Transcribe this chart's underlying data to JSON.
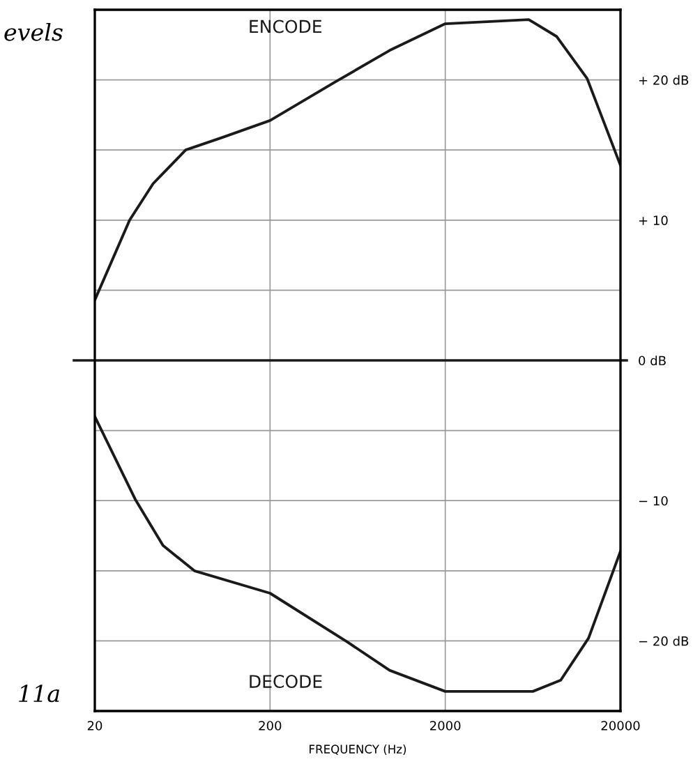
{
  "chart_data": {
    "type": "line",
    "xlabel": "FREQUENCY (Hz)",
    "series": [
      {
        "name": "ENCODE",
        "color": "#1a1a1a",
        "x": [
          20,
          31.6,
          43,
          66,
          107,
          200,
          463,
          963,
          2000,
          5985,
          8630,
          12900,
          20000
        ],
        "values": [
          4.3,
          10.0,
          12.6,
          15.0,
          15.9,
          17.1,
          19.8,
          22.1,
          24.0,
          24.3,
          23.1,
          20.1,
          13.9
        ]
      },
      {
        "name": "DECODE",
        "color": "#1a1a1a",
        "x": [
          20,
          34,
          49,
          74,
          200,
          556,
          963,
          2000,
          6320,
          9120,
          13150,
          20000
        ],
        "values": [
          -4.0,
          -9.9,
          -13.2,
          -15.0,
          -16.6,
          -20.1,
          -22.1,
          -23.6,
          -23.6,
          -22.8,
          -19.8,
          -13.6
        ]
      }
    ],
    "log": "x",
    "xlim": [
      20,
      20000
    ],
    "xticks": [
      20,
      200,
      2000,
      20000
    ],
    "ylim": [
      -25,
      25
    ],
    "yticks": [
      {
        "value": -25,
        "label": null
      },
      {
        "value": -20,
        "label": "− 20 dB"
      },
      {
        "value": -15,
        "label": null
      },
      {
        "value": -10,
        "label": "− 10"
      },
      {
        "value": -5,
        "label": null
      },
      {
        "value": 0,
        "label": "0 dB"
      },
      {
        "value": 5,
        "label": null
      },
      {
        "value": 10,
        "label": "+ 10"
      },
      {
        "value": 15,
        "label": null
      },
      {
        "value": 20,
        "label": "+ 20 dB"
      },
      {
        "value": 25,
        "label": null
      }
    ],
    "grid": true,
    "marker": "none",
    "line_style": "solid",
    "ref_lines": [
      {
        "axis": "y",
        "value": 0,
        "color": "#1a1a1a"
      }
    ],
    "annotations": [
      "evels",
      "11a"
    ]
  }
}
